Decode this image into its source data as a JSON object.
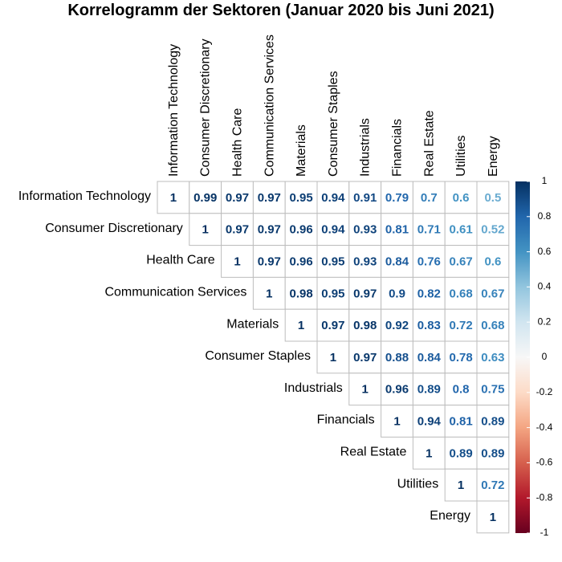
{
  "chart_data": {
    "type": "heatmap",
    "title": "Korrelogramm der Sektoren (Januar 2020 bis Juni 2021)",
    "variables": [
      "Information Technology",
      "Consumer Discretionary",
      "Health Care",
      "Communication Services",
      "Materials",
      "Consumer Staples",
      "Industrials",
      "Financials",
      "Real Estate",
      "Utilities",
      "Energy"
    ],
    "matrix_upper": [
      [
        1,
        0.99,
        0.97,
        0.97,
        0.95,
        0.94,
        0.91,
        0.79,
        0.7,
        0.6,
        0.5
      ],
      [
        1,
        0.97,
        0.97,
        0.96,
        0.94,
        0.93,
        0.81,
        0.71,
        0.61,
        0.52
      ],
      [
        1,
        0.97,
        0.96,
        0.95,
        0.93,
        0.84,
        0.76,
        0.67,
        0.6
      ],
      [
        1,
        0.98,
        0.95,
        0.97,
        0.9,
        0.82,
        0.68,
        0.67
      ],
      [
        1,
        0.97,
        0.98,
        0.92,
        0.83,
        0.72,
        0.68
      ],
      [
        1,
        0.97,
        0.88,
        0.84,
        0.78,
        0.63
      ],
      [
        1,
        0.96,
        0.89,
        0.8,
        0.75
      ],
      [
        1,
        0.94,
        0.81,
        0.89
      ],
      [
        1,
        0.89,
        0.89
      ],
      [
        1,
        0.72
      ],
      [
        1
      ]
    ],
    "colorbar": {
      "range": [
        -1,
        1
      ],
      "ticks": [
        1,
        0.8,
        0.6,
        0.4,
        0.2,
        0,
        -0.2,
        -0.4,
        -0.6,
        -0.8,
        -1
      ],
      "tick_labels": [
        "1",
        "0.8",
        "0.6",
        "0.4",
        "0.2",
        "0",
        "-0.2",
        "-0.4",
        "-0.6",
        "-0.8",
        "-1"
      ],
      "colors_top_to_bottom": [
        "#053061",
        "#2166ac",
        "#4393c3",
        "#92c5de",
        "#d1e5f0",
        "#f7f7f7",
        "#fddbc7",
        "#f4a582",
        "#d6604d",
        "#b2182b",
        "#67001f"
      ]
    }
  }
}
